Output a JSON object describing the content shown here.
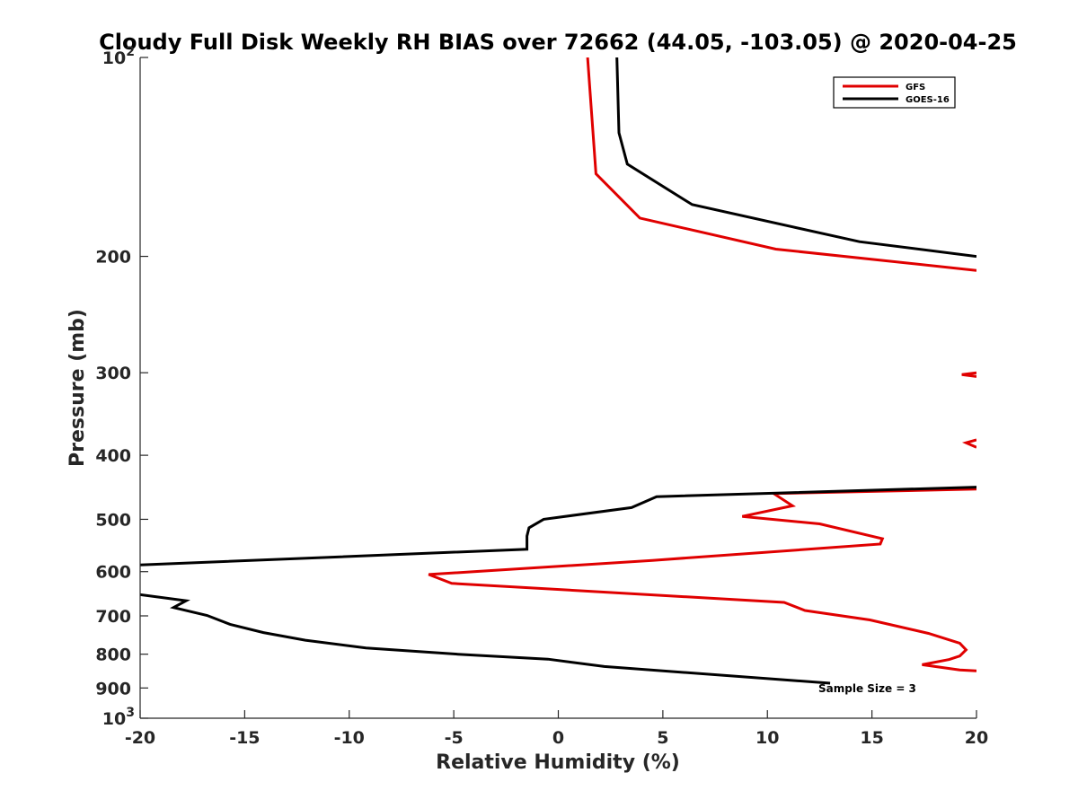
{
  "chart_data": {
    "type": "line",
    "title": "Cloudy Full Disk Weekly RH BIAS over 72662 (44.05, -103.05) @ 2020-04-25",
    "xlabel": "Relative Humidity (%)",
    "ylabel": "Pressure (mb)",
    "xlim": [
      -20,
      20
    ],
    "ylim": [
      100,
      1000
    ],
    "yscale": "log",
    "y_reversed": true,
    "x_ticks": [
      "-20",
      "-15",
      "-10",
      "-5",
      "0",
      "5",
      "10",
      "15",
      "20"
    ],
    "y_ticks": [
      {
        "value": 100,
        "base": "10",
        "exp": "2"
      },
      {
        "value": 200,
        "label": "200"
      },
      {
        "value": 300,
        "label": "300"
      },
      {
        "value": 400,
        "label": "400"
      },
      {
        "value": 500,
        "label": "500"
      },
      {
        "value": 600,
        "label": "600"
      },
      {
        "value": 700,
        "label": "700"
      },
      {
        "value": 800,
        "label": "800"
      },
      {
        "value": 900,
        "label": "900"
      },
      {
        "value": 1000,
        "base": "10",
        "exp": "3"
      }
    ],
    "grid": false,
    "legend_position": "top-right",
    "annotation": "Sample Size = 3",
    "series": [
      {
        "name": "GFS",
        "color": "#e00000",
        "segments": [
          [
            [
              1.4,
              100
            ],
            [
              1.8,
              150
            ],
            [
              3.9,
              175
            ],
            [
              10.4,
              195
            ],
            [
              20,
              210
            ]
          ],
          [
            [
              20,
              300
            ],
            [
              19.3,
              302
            ],
            [
              20,
              304
            ]
          ],
          [
            [
              20,
              379
            ],
            [
              19.5,
              383
            ],
            [
              20,
              389
            ]
          ],
          [
            [
              20,
              450
            ],
            [
              10.3,
              457
            ],
            [
              11.2,
              477
            ],
            [
              8.8,
              495
            ],
            [
              12.5,
              508
            ],
            [
              15.5,
              535
            ],
            [
              15.4,
              545
            ],
            [
              4.5,
              577
            ],
            [
              -6.2,
              606
            ],
            [
              -5.1,
              625
            ],
            [
              10.8,
              668
            ],
            [
              11.8,
              687
            ],
            [
              14.9,
              710
            ],
            [
              17.7,
              744
            ],
            [
              19.2,
              770
            ],
            [
              19.5,
              788
            ],
            [
              19.2,
              805
            ],
            [
              18.7,
              815
            ],
            [
              17.4,
              830
            ],
            [
              19.2,
              845
            ],
            [
              20,
              848
            ]
          ]
        ]
      },
      {
        "name": "GOES-16",
        "color": "#000000",
        "segments": [
          [
            [
              2.8,
              100
            ],
            [
              2.9,
              130
            ],
            [
              3.3,
              145
            ],
            [
              6.4,
              167
            ],
            [
              14.4,
              190
            ],
            [
              20,
              200
            ]
          ],
          [
            [
              20,
              447
            ],
            [
              4.7,
              462
            ],
            [
              3.5,
              480
            ],
            [
              -0.7,
              500
            ],
            [
              -1.4,
              515
            ],
            [
              -1.5,
              530
            ],
            [
              -1.5,
              555
            ],
            [
              -20,
              586
            ]
          ],
          [
            [
              -20,
              650
            ],
            [
              -17.8,
              664
            ],
            [
              -18.4,
              680
            ],
            [
              -16.8,
              699
            ],
            [
              -15.7,
              721
            ],
            [
              -14.1,
              742
            ],
            [
              -12.1,
              762
            ],
            [
              -9.2,
              783
            ],
            [
              -4.8,
              800
            ],
            [
              -0.5,
              814
            ],
            [
              2.2,
              835
            ],
            [
              13,
              885
            ]
          ]
        ]
      }
    ]
  }
}
